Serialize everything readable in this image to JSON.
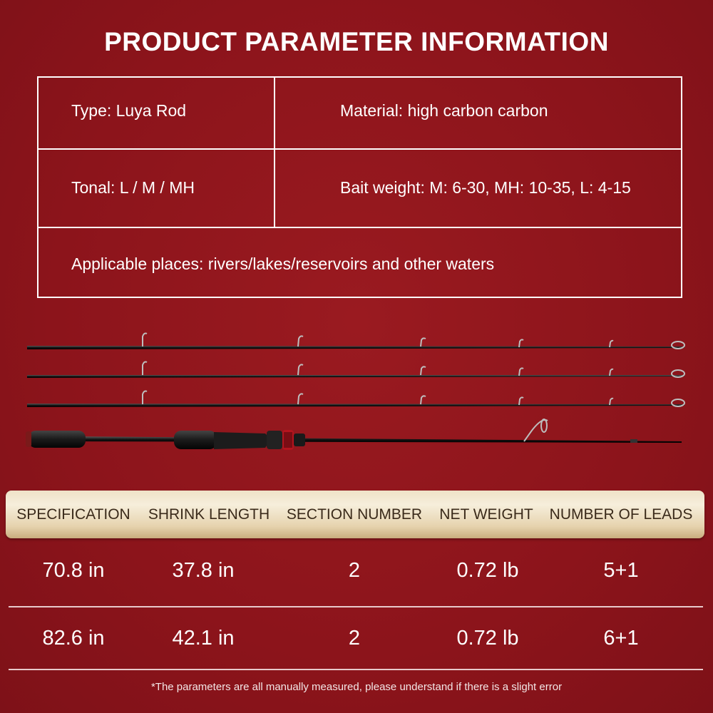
{
  "title": "PRODUCT PARAMETER INFORMATION",
  "params": {
    "type": "Type: Luya Rod",
    "material": "Material: high carbon carbon",
    "tonal": "Tonal: L / M / MH",
    "bait_weight": "Bait weight: M: 6-30, MH: 10-35, L: 4-15",
    "applicable": "Applicable places: rivers/lakes/reservoirs and other waters"
  },
  "spec_table": {
    "headers": [
      "SPECIFICATION",
      "SHRINK LENGTH",
      "SECTION NUMBER",
      "NET WEIGHT",
      "NUMBER OF LEADS"
    ],
    "rows": [
      [
        "70.8 in",
        "37.8 in",
        "2",
        "0.72 lb",
        "5+1"
      ],
      [
        "82.6 in",
        "42.1 in",
        "2",
        "0.72 lb",
        "6+1"
      ]
    ]
  },
  "footnote": "*The parameters are all manually measured, please understand if there is a slight error",
  "colors": {
    "background": "#8c141b",
    "header_bar": "#efe2c8",
    "header_text": "#3a2a1a",
    "text": "#ffffff"
  }
}
